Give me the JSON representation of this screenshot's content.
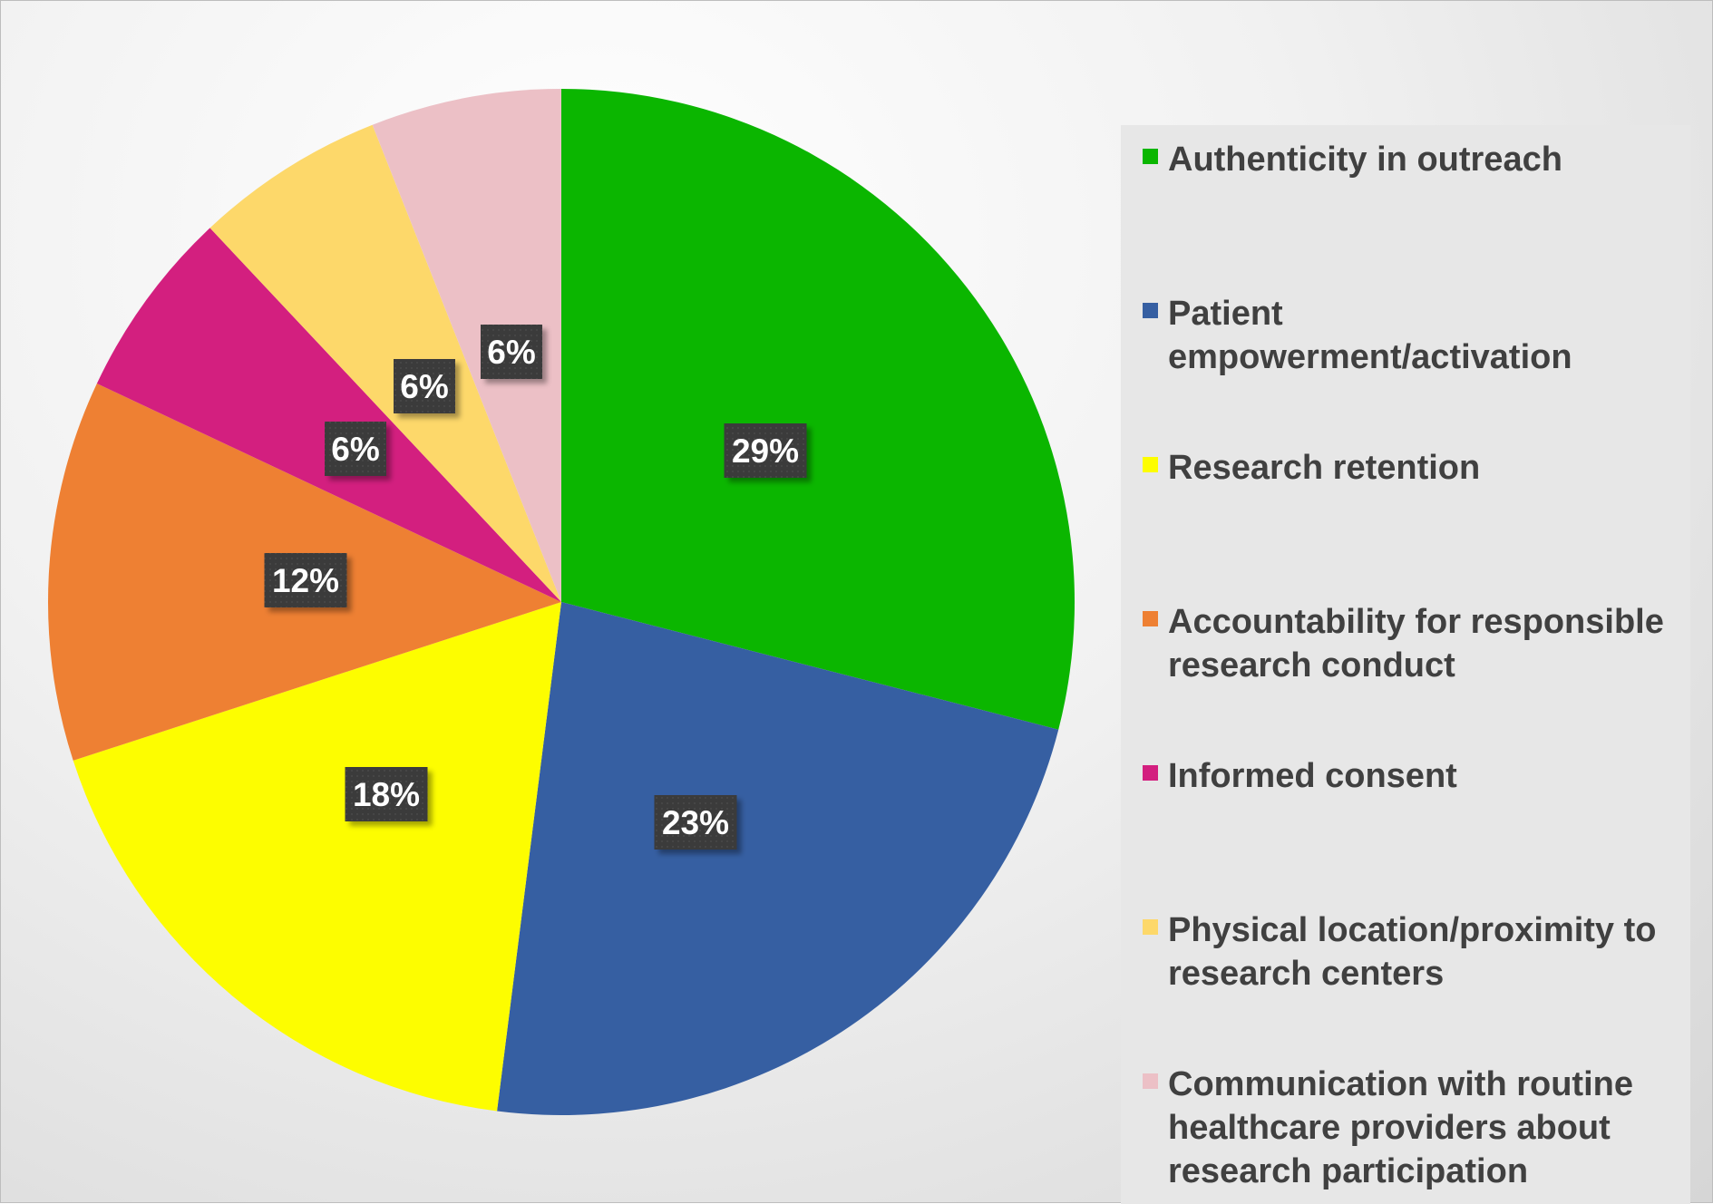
{
  "chart_data": {
    "type": "pie",
    "title": "",
    "legend_position": "right",
    "slices": [
      {
        "label": "Authenticity in outreach",
        "value": 29,
        "display": "29%",
        "color": "#0bb600"
      },
      {
        "label": "Patient empowerment/activation",
        "value": 23,
        "display": "23%",
        "color": "#365fa2"
      },
      {
        "label": "Research retention",
        "value": 18,
        "display": "18%",
        "color": "#fdfd00"
      },
      {
        "label": "Accountability for responsible research conduct",
        "value": 12,
        "display": "12%",
        "color": "#ee8033"
      },
      {
        "label": "Informed consent",
        "value": 6,
        "display": "6%",
        "color": "#d31f7f"
      },
      {
        "label": "Physical location/proximity to research centers",
        "value": 6,
        "display": "6%",
        "color": "#fdd86a"
      },
      {
        "label": "Communication with routine healthcare providers about research participation",
        "value": 6,
        "display": "6%",
        "color": "#ecc0c6"
      }
    ]
  }
}
